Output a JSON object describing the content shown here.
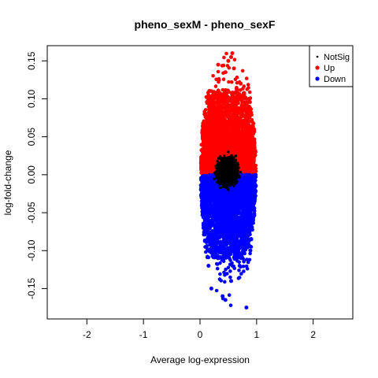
{
  "chart_data": {
    "type": "scatter",
    "title": "pheno_sexM - pheno_sexF",
    "xlabel": "Average log-expression",
    "ylabel": "log-fold-change",
    "xlim": [
      -2.7,
      2.7
    ],
    "ylim": [
      -0.19,
      0.17
    ],
    "xticks": [
      -2,
      -1,
      0,
      1,
      2
    ],
    "yticks": [
      -0.15,
      -0.1,
      -0.05,
      0.0,
      0.05,
      0.1,
      0.15
    ],
    "xtick_labels": [
      "-2",
      "-1",
      "0",
      "1",
      "2"
    ],
    "ytick_labels": [
      "-0.15",
      "-0.10",
      "-0.05",
      "0.00",
      "0.05",
      "0.10",
      "0.15"
    ],
    "grid": false,
    "legend_position": "top-right",
    "series": [
      {
        "name": "NotSig",
        "color": "#000000",
        "marker": "small-dot",
        "x_range": [
          0.25,
          0.72
        ],
        "y_range": [
          -0.02,
          0.03
        ],
        "points": [
          [
            0.5,
            0.03
          ],
          [
            0.43,
            0.025
          ],
          [
            0.56,
            0.023
          ],
          [
            0.35,
            0.015
          ],
          [
            0.62,
            0.01
          ],
          [
            0.29,
            0.005
          ],
          [
            0.66,
            0.0
          ],
          [
            0.3,
            -0.01
          ],
          [
            0.5,
            -0.02
          ],
          [
            0.6,
            -0.015
          ]
        ]
      },
      {
        "name": "Up",
        "color": "#ff0000",
        "marker": "filled-circle",
        "x_range": [
          0.0,
          1.0
        ],
        "y_range": [
          0.0,
          0.16
        ],
        "points": [
          [
            0.57,
            0.16
          ],
          [
            0.55,
            0.155
          ],
          [
            0.5,
            0.15
          ],
          [
            0.32,
            0.145
          ],
          [
            0.45,
            0.135
          ],
          [
            0.6,
            0.14
          ],
          [
            0.72,
            0.12
          ],
          [
            0.2,
            0.11
          ],
          [
            0.85,
            0.08
          ],
          [
            0.05,
            0.02
          ]
        ]
      },
      {
        "name": "Down",
        "color": "#0000ff",
        "marker": "filled-circle",
        "x_range": [
          0.0,
          1.0
        ],
        "y_range": [
          -0.175,
          0.0
        ],
        "points": [
          [
            0.82,
            -0.175
          ],
          [
            0.45,
            -0.165
          ],
          [
            0.4,
            -0.16
          ],
          [
            0.2,
            -0.15
          ],
          [
            0.55,
            -0.14
          ],
          [
            0.7,
            -0.12
          ],
          [
            0.15,
            -0.12
          ],
          [
            0.85,
            -0.08
          ],
          [
            0.05,
            -0.02
          ]
        ]
      }
    ]
  }
}
